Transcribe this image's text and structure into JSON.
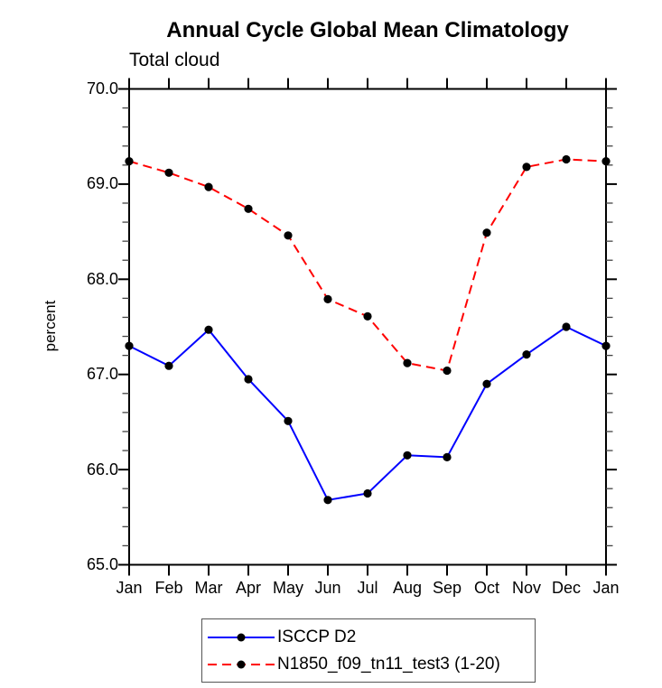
{
  "page": {
    "background": "#ffffff"
  },
  "header": {
    "title": "Annual Cycle Global Mean Climatology",
    "subtitle": "Total cloud"
  },
  "chart_data": {
    "type": "line",
    "title": "Annual Cycle Global Mean Climatology",
    "subtitle": "Total cloud",
    "ylabel": "percent",
    "xlabel": "",
    "ylim": [
      65.0,
      70.0
    ],
    "ytick_values": [
      65,
      66,
      67,
      68,
      69,
      70
    ],
    "ytick_labels": [
      "65.0",
      "66.0",
      "67.0",
      "68.0",
      "69.0",
      "70.0"
    ],
    "y_minor_step": 0.2,
    "grid": false,
    "legend_position": "bottom-center",
    "categories": [
      "Jan",
      "Feb",
      "Mar",
      "Apr",
      "May",
      "Jun",
      "Jul",
      "Aug",
      "Sep",
      "Oct",
      "Nov",
      "Dec",
      "Jan"
    ],
    "series": [
      {
        "name": "ISCCP D2",
        "color": "#0000ff",
        "line_style": "solid",
        "marker": "filled-circle",
        "marker_color": "#000000",
        "values": [
          67.3,
          67.09,
          67.47,
          66.95,
          66.51,
          65.68,
          65.75,
          66.15,
          66.13,
          66.9,
          67.21,
          67.5,
          67.3
        ]
      },
      {
        "name": "N1850_f09_tn11_test3 (1-20)",
        "color": "#ff0000",
        "line_style": "dashed",
        "marker": "filled-circle",
        "marker_color": "#000000",
        "values": [
          69.24,
          69.12,
          68.97,
          68.74,
          68.46,
          67.79,
          67.61,
          67.12,
          67.04,
          68.49,
          69.18,
          69.26,
          69.24
        ]
      }
    ]
  },
  "colors": {
    "axis": "#000000",
    "minor_tick": "#444444",
    "text": "#000000",
    "legend_border": "#555555"
  }
}
